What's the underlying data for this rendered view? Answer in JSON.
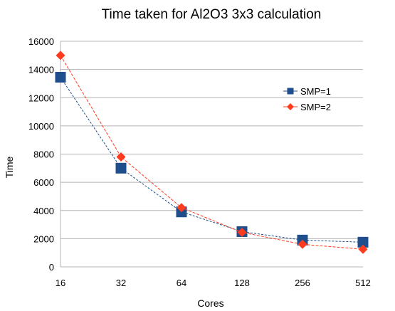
{
  "chart_data": {
    "type": "line",
    "title": "Time taken for Al2O3 3x3 calculation",
    "xlabel": "Cores",
    "ylabel": "Time",
    "categories": [
      "16",
      "32",
      "64",
      "128",
      "256",
      "512"
    ],
    "series": [
      {
        "name": "SMP=1",
        "color": "#1f4e8c",
        "marker": "square",
        "values": [
          13450,
          7000,
          3900,
          2500,
          1900,
          1750
        ]
      },
      {
        "name": "SMP=2",
        "color": "#ff3b1f",
        "marker": "diamond",
        "values": [
          15000,
          7800,
          4200,
          2450,
          1600,
          1250
        ]
      }
    ],
    "ylim": [
      0,
      16000
    ],
    "yticks": [
      "0",
      "2000",
      "4000",
      "6000",
      "8000",
      "10000",
      "12000",
      "14000",
      "16000"
    ],
    "grid": "horizontal",
    "legend_position": "right"
  }
}
